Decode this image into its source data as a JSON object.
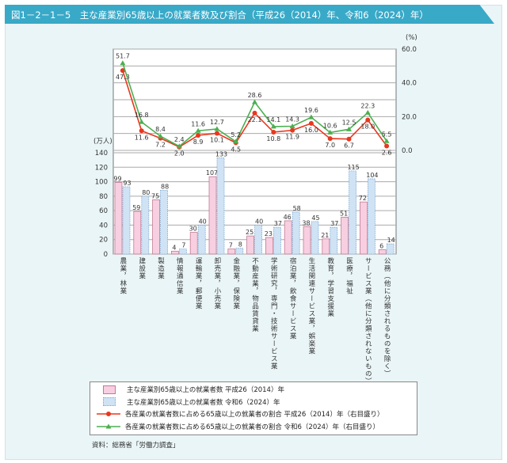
{
  "title": "図1－2－1－5　主な産業別65歳以上の就業者数及び割合（平成26（2014）年、令和6（2024）年）",
  "source": "資料：総務省「労働力調査」",
  "chart_data": {
    "type": "bar+line",
    "categories": [
      "農業，林業",
      "建設業",
      "製造業",
      "情報通信業",
      "運輸業，郵便業",
      "卸売業，小売業",
      "金融業，保険業",
      "不動産業，物品賃貸業",
      "学術研究，専門・技術サービス業",
      "宿泊業，飲食サービス業",
      "生活関連サービス業，娯楽業",
      "教育，学習支援業",
      "医療，福祉",
      "サービス業（他に分類されないもの）",
      "公務（他に分類されるものを除く）"
    ],
    "left_axis": {
      "unit": "(万人)",
      "range": [
        0,
        140
      ],
      "ticks": [
        "0",
        "20",
        "40",
        "60",
        "80",
        "100",
        "120",
        "140"
      ]
    },
    "right_axis": {
      "unit": "(%)",
      "range": [
        0,
        60
      ],
      "ticks": [
        "0.0",
        "20.0",
        "40.0",
        "60.0"
      ]
    },
    "grid": true,
    "legend_placement": "bottom",
    "series": [
      {
        "name": "主な産業別65歳以上の就業者数 平成26（2014）年",
        "kind": "bar",
        "axis": "left",
        "color": "#f7cfe0",
        "values": [
          99,
          59,
          75,
          4,
          30,
          107,
          7,
          25,
          23,
          46,
          38,
          21,
          51,
          72,
          6
        ]
      },
      {
        "name": "主な産業別65歳以上の就業者数 令和6（2024）年",
        "kind": "bar",
        "axis": "left",
        "color": "#cfe3f5",
        "values": [
          93,
          80,
          88,
          7,
          40,
          133,
          8,
          40,
          37,
          58,
          45,
          37,
          115,
          104,
          14
        ]
      },
      {
        "name": "各産業の就業者数に占める65歳以上の就業者の割合 平成26（2014）年（右目盛り）",
        "kind": "line",
        "axis": "right",
        "color": "#e8371f",
        "values": [
          47.3,
          11.6,
          7.2,
          2.0,
          8.9,
          10.1,
          4.5,
          22.1,
          10.8,
          11.9,
          16.0,
          7.0,
          6.7,
          18.0,
          2.6
        ]
      },
      {
        "name": "各産業の就業者数に占める65歳以上の就業者の割合 令和6（2024）年（右目盛り）",
        "kind": "line",
        "axis": "right",
        "color": "#4caf50",
        "values": [
          51.7,
          16.8,
          8.4,
          2.4,
          11.6,
          12.7,
          5.2,
          28.6,
          14.1,
          14.3,
          19.6,
          10.6,
          12.5,
          22.3,
          5.5
        ]
      }
    ]
  }
}
